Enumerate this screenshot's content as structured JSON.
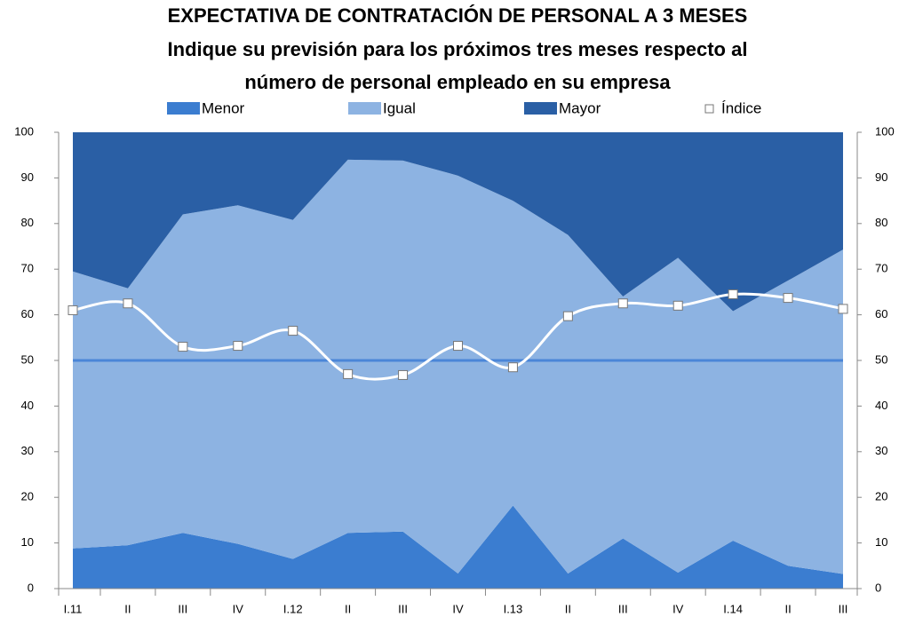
{
  "chart_data": {
    "type": "stacked_area",
    "title": [
      "EXPECTATIVA DE CONTRATACIÓN DE PERSONAL A 3 MESES",
      "Indique su previsión para los próximos tres meses respecto al",
      "número de personal empleado en su empresa"
    ],
    "categories": [
      "I.11",
      "II",
      "III",
      "IV",
      "I.12",
      "II",
      "III",
      "IV",
      "I.13",
      "II",
      "III",
      "IV",
      "I.14",
      "II",
      "III"
    ],
    "series": [
      {
        "name": "Menor",
        "color": "#3b7dd0",
        "values": [
          8.8,
          9.5,
          12.2,
          9.8,
          6.5,
          12.2,
          12.5,
          3.3,
          18.2,
          3.3,
          11.0,
          3.5,
          10.5,
          5.0,
          3.2
        ]
      },
      {
        "name": "Igual",
        "color": "#8db3e2",
        "values": [
          60.7,
          56.3,
          69.8,
          74.2,
          74.3,
          81.8,
          81.3,
          87.2,
          66.8,
          74.2,
          53.0,
          69.0,
          50.3,
          62.5,
          71.1
        ]
      },
      {
        "name": "Mayor",
        "color": "#2a5fa5",
        "values": [
          30.5,
          34.2,
          18.0,
          16.0,
          19.2,
          6.0,
          6.2,
          9.5,
          15.0,
          22.5,
          36.0,
          27.5,
          39.2,
          32.5,
          25.7
        ]
      }
    ],
    "index_series": {
      "name": "Índice",
      "color": "#ffffff",
      "values": [
        61,
        62.5,
        53,
        53.2,
        56.5,
        47,
        46.8,
        53.2,
        48.5,
        59.7,
        62.5,
        62,
        64.5,
        63.7,
        61.3
      ]
    },
    "reference_line": {
      "value": 50,
      "color": "#4a86d8"
    },
    "ylim": [
      0,
      100
    ],
    "yticks": [
      0,
      10,
      20,
      30,
      40,
      50,
      60,
      70,
      80,
      90,
      100
    ],
    "y2lim": [
      0,
      100
    ],
    "y2ticks": [
      0,
      10,
      20,
      30,
      40,
      50,
      60,
      70,
      80,
      90,
      100
    ]
  }
}
